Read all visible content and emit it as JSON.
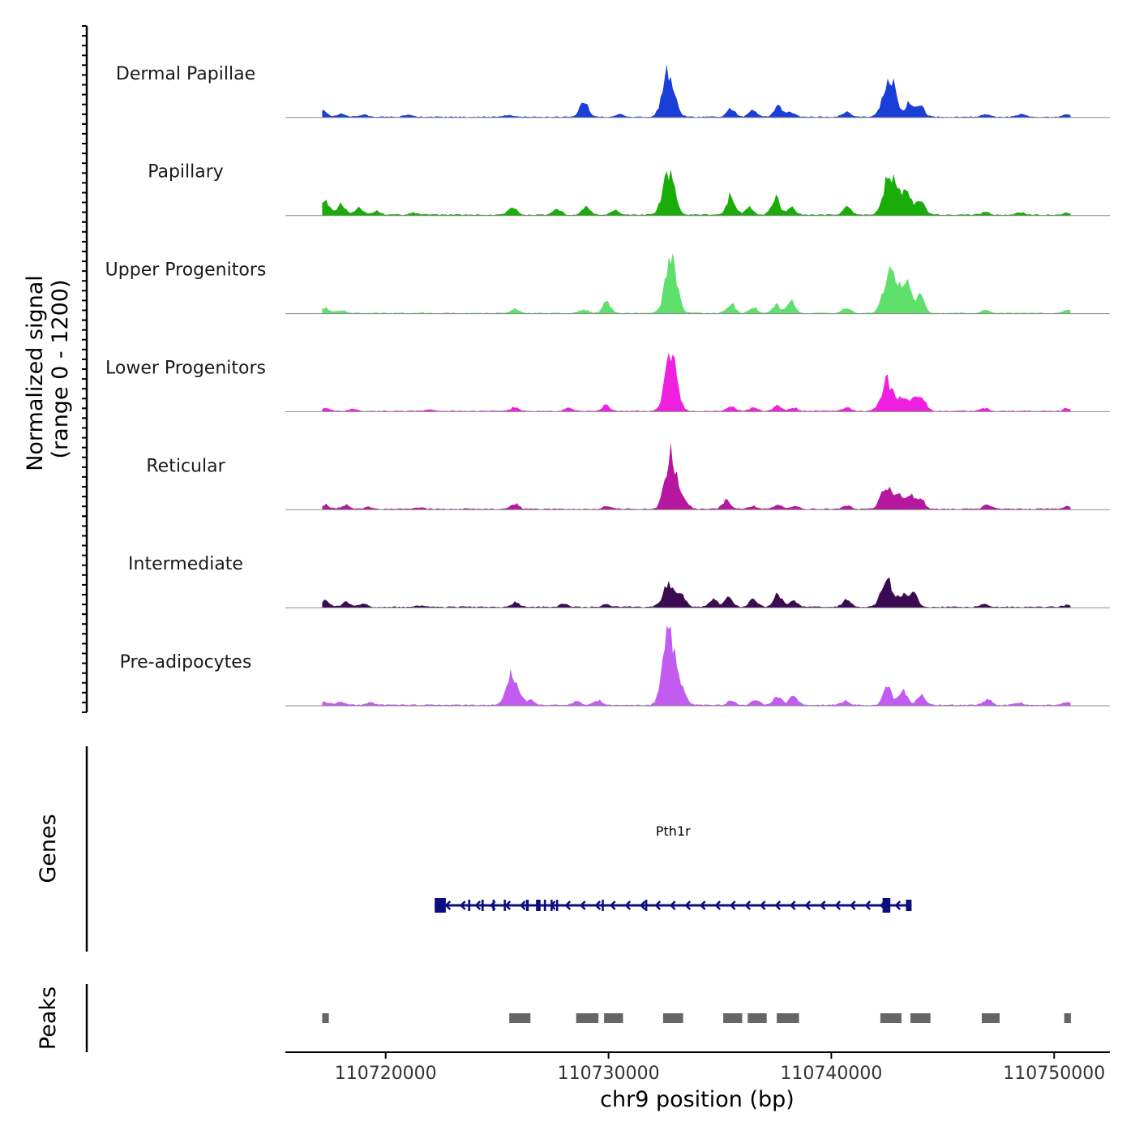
{
  "chart_data": {
    "type": "area",
    "title": "",
    "region": {
      "chrom": "chr9",
      "start": 110715500,
      "end": 110752500
    },
    "signal_axis_label_line1": "Normalized signal",
    "signal_axis_label_line2": "(range 0 - 1200)",
    "signal_range": [
      0,
      1200
    ],
    "genes_axis_label": "Genes",
    "peaks_axis_label": "Peaks",
    "xlabel": "chr9 position (bp)",
    "x_ticks": [
      110720000,
      110730000,
      110740000,
      110750000
    ],
    "x_tick_labels": [
      "110720000",
      "110730000",
      "110740000",
      "110750000"
    ],
    "series": [
      {
        "name": "Dermal Papillae",
        "color": "#1a3fd9",
        "peaks": [
          [
            110717200,
            90
          ],
          [
            110718000,
            45
          ],
          [
            110719000,
            35
          ],
          [
            110721000,
            25
          ],
          [
            110725500,
            25
          ],
          [
            110728900,
            230
          ],
          [
            110730500,
            35
          ],
          [
            110732700,
            650
          ],
          [
            110735500,
            110
          ],
          [
            110736500,
            90
          ],
          [
            110737600,
            170
          ],
          [
            110738200,
            70
          ],
          [
            110740700,
            70
          ],
          [
            110742600,
            620
          ],
          [
            110743500,
            190
          ],
          [
            110744000,
            160
          ],
          [
            110746900,
            40
          ],
          [
            110748500,
            35
          ],
          [
            110750600,
            30
          ]
        ],
        "baseline": 12
      },
      {
        "name": "Papillary",
        "color": "#1aad0a",
        "peaks": [
          [
            110717300,
            190
          ],
          [
            110718000,
            150
          ],
          [
            110718800,
            110
          ],
          [
            110719600,
            50
          ],
          [
            110721300,
            30
          ],
          [
            110725700,
            110
          ],
          [
            110727700,
            90
          ],
          [
            110729000,
            110
          ],
          [
            110730300,
            60
          ],
          [
            110732700,
            620
          ],
          [
            110735500,
            280
          ],
          [
            110736300,
            120
          ],
          [
            110737500,
            260
          ],
          [
            110738200,
            110
          ],
          [
            110740700,
            110
          ],
          [
            110742600,
            560
          ],
          [
            110743300,
            330
          ],
          [
            110744000,
            200
          ],
          [
            110746900,
            40
          ],
          [
            110748500,
            30
          ],
          [
            110750600,
            30
          ]
        ],
        "baseline": 14
      },
      {
        "name": "Upper Progenitors",
        "color": "#5fe06c",
        "peaks": [
          [
            110717300,
            80
          ],
          [
            110718000,
            40
          ],
          [
            110725800,
            60
          ],
          [
            110728900,
            50
          ],
          [
            110729900,
            150
          ],
          [
            110732800,
            760
          ],
          [
            110735500,
            140
          ],
          [
            110736500,
            80
          ],
          [
            110737500,
            120
          ],
          [
            110738200,
            160
          ],
          [
            110740700,
            80
          ],
          [
            110742600,
            620
          ],
          [
            110743300,
            450
          ],
          [
            110744000,
            230
          ],
          [
            110746900,
            40
          ],
          [
            110750600,
            40
          ]
        ],
        "baseline": 10
      },
      {
        "name": "Lower Progenitors",
        "color": "#f020e0",
        "peaks": [
          [
            110717300,
            45
          ],
          [
            110718500,
            30
          ],
          [
            110722000,
            25
          ],
          [
            110725800,
            55
          ],
          [
            110728200,
            40
          ],
          [
            110729900,
            80
          ],
          [
            110732800,
            780
          ],
          [
            110735500,
            60
          ],
          [
            110736500,
            50
          ],
          [
            110737600,
            70
          ],
          [
            110738300,
            50
          ],
          [
            110740700,
            50
          ],
          [
            110742500,
            440
          ],
          [
            110743200,
            200
          ],
          [
            110743700,
            180
          ],
          [
            110744100,
            150
          ],
          [
            110746900,
            40
          ],
          [
            110750600,
            40
          ]
        ],
        "baseline": 12
      },
      {
        "name": "Reticular",
        "color": "#b5189e",
        "peaks": [
          [
            110717300,
            60
          ],
          [
            110718200,
            50
          ],
          [
            110719200,
            30
          ],
          [
            110721500,
            20
          ],
          [
            110725800,
            70
          ],
          [
            110729900,
            40
          ],
          [
            110732800,
            760
          ],
          [
            110733400,
            130
          ],
          [
            110735300,
            120
          ],
          [
            110736500,
            40
          ],
          [
            110737600,
            60
          ],
          [
            110738300,
            50
          ],
          [
            110740700,
            40
          ],
          [
            110742500,
            320
          ],
          [
            110743100,
            200
          ],
          [
            110743600,
            170
          ],
          [
            110744000,
            140
          ],
          [
            110747000,
            60
          ],
          [
            110750600,
            35
          ]
        ],
        "baseline": 14
      },
      {
        "name": "Intermediate",
        "color": "#3a0a52",
        "peaks": [
          [
            110717300,
            100
          ],
          [
            110718200,
            70
          ],
          [
            110719000,
            40
          ],
          [
            110721500,
            20
          ],
          [
            110725800,
            60
          ],
          [
            110728000,
            40
          ],
          [
            110729900,
            40
          ],
          [
            110732700,
            350
          ],
          [
            110733300,
            170
          ],
          [
            110734700,
            100
          ],
          [
            110735400,
            130
          ],
          [
            110736500,
            110
          ],
          [
            110737600,
            190
          ],
          [
            110738300,
            90
          ],
          [
            110740700,
            120
          ],
          [
            110742500,
            370
          ],
          [
            110743200,
            170
          ],
          [
            110743700,
            180
          ],
          [
            110746900,
            40
          ],
          [
            110750600,
            30
          ]
        ],
        "baseline": 14
      },
      {
        "name": "Pre-adipocytes",
        "color": "#c25cf0",
        "peaks": [
          [
            110717300,
            50
          ],
          [
            110718000,
            40
          ],
          [
            110719300,
            40
          ],
          [
            110725700,
            440
          ],
          [
            110726500,
            70
          ],
          [
            110728600,
            50
          ],
          [
            110729500,
            70
          ],
          [
            110732700,
            1150
          ],
          [
            110733300,
            200
          ],
          [
            110735500,
            60
          ],
          [
            110736600,
            90
          ],
          [
            110737600,
            130
          ],
          [
            110738300,
            120
          ],
          [
            110740600,
            60
          ],
          [
            110742500,
            280
          ],
          [
            110743200,
            240
          ],
          [
            110744000,
            140
          ],
          [
            110747000,
            80
          ],
          [
            110748400,
            40
          ],
          [
            110750600,
            40
          ]
        ],
        "baseline": 14
      }
    ],
    "gene": {
      "name": "Pth1r",
      "color": "#0d0d80",
      "strand": "-",
      "start": 110722200,
      "end": 110743600,
      "exons": [
        [
          110722200,
          110722700
        ],
        [
          110723700,
          110723800
        ],
        [
          110724300,
          110724400
        ],
        [
          110724800,
          110724880
        ],
        [
          110725300,
          110725370
        ],
        [
          110726300,
          110726420
        ],
        [
          110726750,
          110726950
        ],
        [
          110727100,
          110727200
        ],
        [
          110727400,
          110727480
        ],
        [
          110727650,
          110727730
        ],
        [
          110729700,
          110729790
        ],
        [
          110731650,
          110731730
        ],
        [
          110742300,
          110742650
        ],
        [
          110743350,
          110743600
        ]
      ]
    },
    "peak_regions": [
      [
        110717150,
        110717450
      ],
      [
        110725550,
        110726500
      ],
      [
        110728550,
        110729550
      ],
      [
        110729800,
        110730650
      ],
      [
        110732450,
        110733350
      ],
      [
        110735150,
        110736000
      ],
      [
        110736250,
        110737100
      ],
      [
        110737550,
        110738550
      ],
      [
        110742200,
        110743150
      ],
      [
        110743550,
        110744450
      ],
      [
        110746750,
        110747550
      ],
      [
        110750450,
        110750750
      ]
    ],
    "peaks_color": "#666666"
  }
}
